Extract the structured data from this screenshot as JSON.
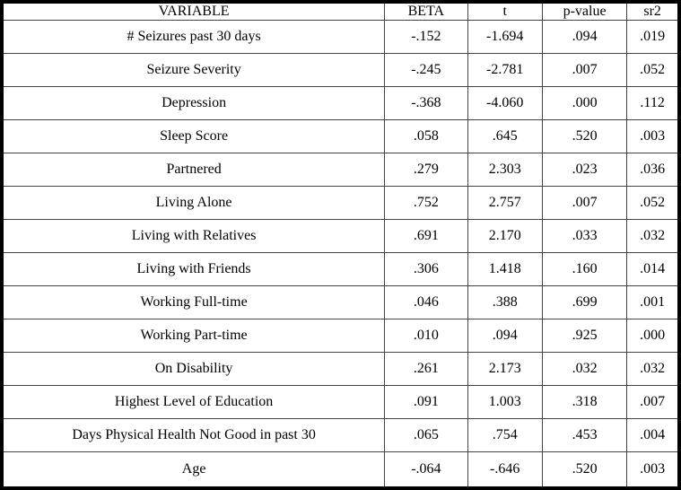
{
  "colors": {
    "background": "#ffffff",
    "text": "#000000",
    "outer_border": "#000000",
    "grid_line": "#434343"
  },
  "chart_data": {
    "type": "table",
    "headers": [
      "VARIABLE",
      "BETA",
      "t",
      "p-value",
      "sr2"
    ],
    "rows": [
      [
        "# Seizures past 30 days",
        "-.152",
        "-1.694",
        ".094",
        ".019"
      ],
      [
        "Seizure Severity",
        "-.245",
        "-2.781",
        ".007",
        ".052"
      ],
      [
        "Depression",
        "-.368",
        "-4.060",
        ".000",
        ".112"
      ],
      [
        "Sleep Score",
        ".058",
        ".645",
        ".520",
        ".003"
      ],
      [
        "Partnered",
        ".279",
        "2.303",
        ".023",
        ".036"
      ],
      [
        "Living Alone",
        ".752",
        "2.757",
        ".007",
        ".052"
      ],
      [
        "Living with Relatives",
        ".691",
        "2.170",
        ".033",
        ".032"
      ],
      [
        "Living with Friends",
        ".306",
        "1.418",
        ".160",
        ".014"
      ],
      [
        "Working Full-time",
        ".046",
        ".388",
        ".699",
        ".001"
      ],
      [
        "Working Part-time",
        ".010",
        ".094",
        ".925",
        ".000"
      ],
      [
        "On Disability",
        ".261",
        "2.173",
        ".032",
        ".032"
      ],
      [
        "Highest Level of Education",
        ".091",
        "1.003",
        ".318",
        ".007"
      ],
      [
        "Days Physical Health Not Good in past 30",
        ".065",
        ".754",
        ".453",
        ".004"
      ],
      [
        "Age",
        "-.064",
        "-.646",
        ".520",
        ".003"
      ]
    ]
  }
}
